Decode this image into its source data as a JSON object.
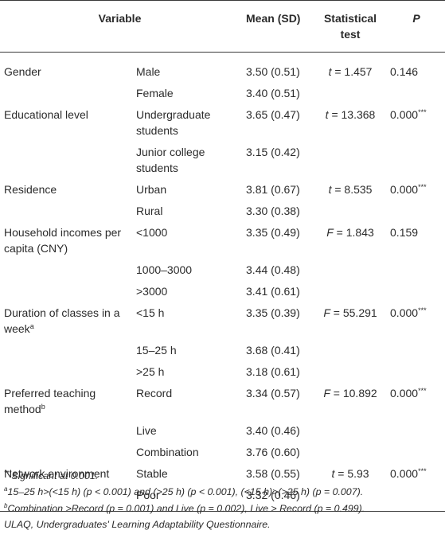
{
  "headers": {
    "variable": "Variable",
    "mean": "Mean (SD)",
    "test_line1": "Statistical",
    "test_line2": "test",
    "p": "P"
  },
  "rows": [
    {
      "variable": "Gender",
      "category": "Male",
      "mean": "3.50 (0.51)",
      "test_sym": "t",
      "test_val": " = 1.457",
      "p": "0.146",
      "p_sup": ""
    },
    {
      "variable": "",
      "category": "Female",
      "mean": "3.40 (0.51)",
      "test_sym": "",
      "test_val": "",
      "p": "",
      "p_sup": ""
    },
    {
      "variable": "Educational level",
      "category": "Undergraduate students",
      "mean": "3.65 (0.47)",
      "test_sym": "t",
      "test_val": " = 13.368",
      "p": "0.000",
      "p_sup": "***"
    },
    {
      "variable": "",
      "category": "Junior college students",
      "mean": "3.15 (0.42)",
      "test_sym": "",
      "test_val": "",
      "p": "",
      "p_sup": ""
    },
    {
      "variable": "Residence",
      "category": "Urban",
      "mean": "3.81 (0.67)",
      "test_sym": "t",
      "test_val": " = 8.535",
      "p": "0.000",
      "p_sup": "***"
    },
    {
      "variable": "",
      "category": "Rural",
      "mean": "3.30 (0.38)",
      "test_sym": "",
      "test_val": "",
      "p": "",
      "p_sup": ""
    },
    {
      "variable": "Household incomes per capita (CNY)",
      "category": "<1000",
      "mean": "3.35 (0.49)",
      "test_sym": "F",
      "test_val": " = 1.843",
      "p": "0.159",
      "p_sup": ""
    },
    {
      "variable": "",
      "category": "1000–3000",
      "mean": "3.44 (0.48)",
      "test_sym": "",
      "test_val": "",
      "p": "",
      "p_sup": ""
    },
    {
      "variable": "",
      "category": ">3000",
      "mean": "3.41 (0.61)",
      "test_sym": "",
      "test_val": "",
      "p": "",
      "p_sup": ""
    },
    {
      "variable": "Duration of classes in a week",
      "variable_sup": "a",
      "category": "<15 h",
      "mean": "3.35 (0.39)",
      "test_sym": "F",
      "test_val": " = 55.291",
      "p": "0.000",
      "p_sup": "***"
    },
    {
      "variable": "",
      "category": "15–25 h",
      "mean": "3.68 (0.41)",
      "test_sym": "",
      "test_val": "",
      "p": "",
      "p_sup": ""
    },
    {
      "variable": "",
      "category": ">25 h",
      "mean": "3.18 (0.61)",
      "test_sym": "",
      "test_val": "",
      "p": "",
      "p_sup": ""
    },
    {
      "variable": "Preferred teaching method",
      "variable_sup": "b",
      "category": "Record",
      "mean": "3.34 (0.57)",
      "test_sym": "F",
      "test_val": " = 10.892",
      "p": "0.000",
      "p_sup": "***"
    },
    {
      "variable": "",
      "category": "Live",
      "mean": "3.40 (0.46)",
      "test_sym": "",
      "test_val": "",
      "p": "",
      "p_sup": ""
    },
    {
      "variable": "",
      "category": "Combination",
      "mean": "3.76 (0.60)",
      "test_sym": "",
      "test_val": "",
      "p": "",
      "p_sup": ""
    },
    {
      "variable": "Network environment",
      "category": "Stable",
      "mean": "3.58 (0.55)",
      "test_sym": "t",
      "test_val": " = 5.93",
      "p": "0.000",
      "p_sup": "***"
    },
    {
      "variable": "",
      "category": "Poor",
      "mean": "3.32 (0.46)",
      "test_sym": "",
      "test_val": "",
      "p": "",
      "p_sup": ""
    }
  ],
  "notes": {
    "n1_sup": "***",
    "n1": "Significant at 0.001.",
    "n2_sup": "a",
    "n2": "15–25 h>(<15 h) (p < 0.001) and (>25 h) (p < 0.001), (<15 h)>(>25 h) (p = 0.007).",
    "n3_sup": "b",
    "n3": "Combination >Record (p = 0.001) and Live (p = 0.002), Live > Record (p = 0.499).",
    "n4": "ULAQ, Undergraduates' Learning Adaptability Questionnaire."
  }
}
